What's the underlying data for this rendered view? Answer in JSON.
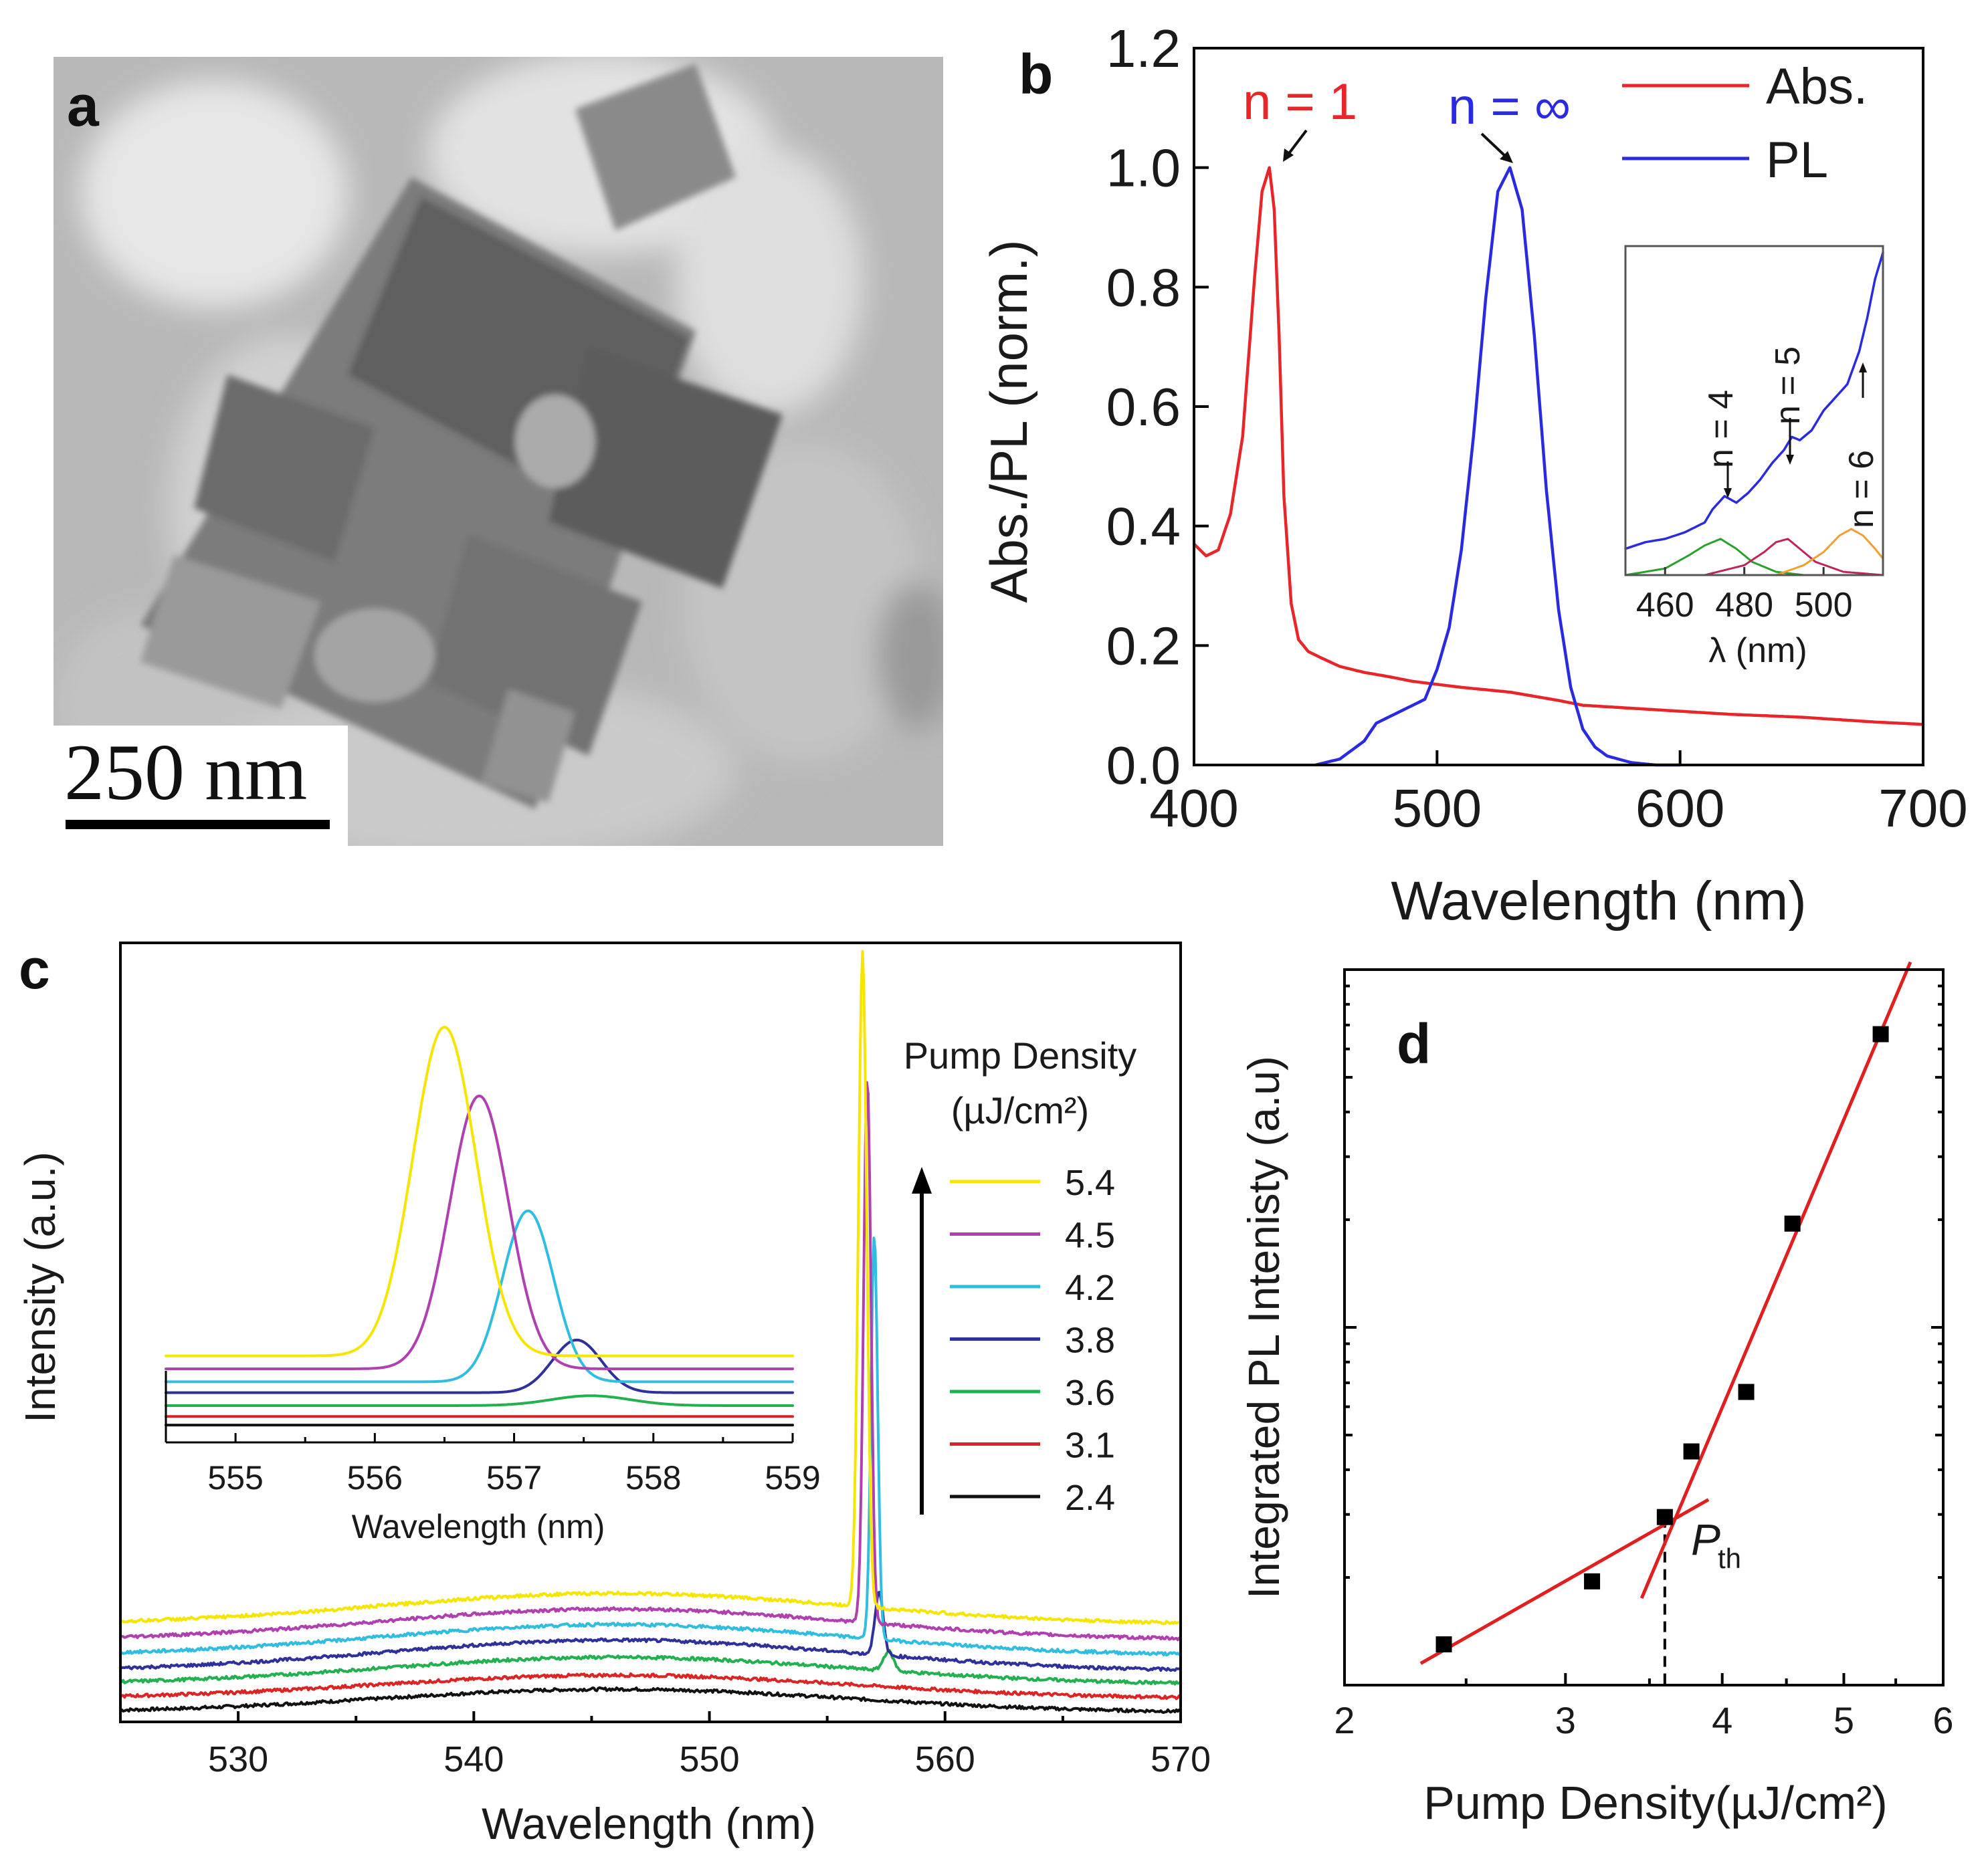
{
  "panels": {
    "a": {
      "label": "a",
      "scale_bar": "250 nm"
    }
  },
  "colors": {
    "abs": "#e8262a",
    "pl": "#2a2ae0",
    "yellow": "#f5e600",
    "purple": "#b040b0",
    "cyan": "#30bde0",
    "navy": "#30309a",
    "green": "#22b050",
    "red": "#dd2424",
    "black": "#111111",
    "fit": "#e02020",
    "inset_green": "#2ca02c",
    "inset_red": "#c0245c",
    "inset_orange": "#f0a030"
  },
  "chart_data": [
    {
      "panel": "b",
      "type": "line",
      "xlabel": "Wavelength (nm)",
      "ylabel": "Abs./PL (norm.)",
      "xlim": [
        400,
        700
      ],
      "ylim": [
        0.0,
        1.2
      ],
      "xticks": [
        400,
        500,
        600,
        700
      ],
      "yticks": [
        0.0,
        0.2,
        0.4,
        0.6,
        0.8,
        1.0,
        1.2
      ],
      "xtick_labels": [
        "400",
        "500",
        "600",
        "700"
      ],
      "ytick_labels": [
        "0.0",
        "0.2",
        "0.4",
        "0.6",
        "0.8",
        "1.0",
        "1.2"
      ],
      "legend": [
        "Abs.",
        "PL"
      ],
      "legend_position": "top-right",
      "annotations": [
        "n = 1",
        "n = ∞"
      ],
      "series": [
        {
          "name": "Abs.",
          "x": [
            400,
            405,
            410,
            415,
            420,
            425,
            428,
            431,
            433,
            435,
            437,
            440,
            443,
            447,
            452,
            460,
            470,
            480,
            490,
            500,
            510,
            520,
            530,
            540,
            550,
            560,
            580,
            600,
            620,
            650,
            680,
            700
          ],
          "y": [
            0.37,
            0.35,
            0.36,
            0.42,
            0.55,
            0.82,
            0.96,
            1.0,
            0.93,
            0.72,
            0.45,
            0.27,
            0.21,
            0.19,
            0.18,
            0.165,
            0.155,
            0.148,
            0.14,
            0.135,
            0.13,
            0.126,
            0.122,
            0.115,
            0.108,
            0.1,
            0.095,
            0.09,
            0.085,
            0.08,
            0.072,
            0.068
          ]
        },
        {
          "name": "PL",
          "x": [
            450,
            460,
            470,
            475,
            480,
            485,
            490,
            495,
            500,
            505,
            510,
            515,
            520,
            525,
            530,
            535,
            540,
            545,
            550,
            555,
            560,
            565,
            570,
            580,
            590,
            600
          ],
          "y": [
            0.0,
            0.01,
            0.04,
            0.07,
            0.08,
            0.09,
            0.1,
            0.11,
            0.16,
            0.23,
            0.36,
            0.55,
            0.78,
            0.96,
            1.0,
            0.93,
            0.72,
            0.46,
            0.26,
            0.13,
            0.06,
            0.03,
            0.015,
            0.004,
            0.0,
            0.0
          ]
        }
      ],
      "inset": {
        "xlabel": "λ (nm)",
        "xticks": [
          460,
          480,
          500
        ],
        "xtick_labels": [
          "460",
          "480",
          "500"
        ],
        "xlim": [
          450,
          515
        ],
        "ylim": [
          0,
          1
        ],
        "annotations": [
          "n = 4",
          "n = 5",
          "n = 6"
        ],
        "series": [
          {
            "name": "PL",
            "x": [
              450,
              455,
              460,
              465,
              470,
              472,
              475,
              478,
              481,
              484,
              487,
              490,
              492,
              494,
              497,
              500,
              503,
              506,
              509,
              511,
              513,
              515
            ],
            "y": [
              0.08,
              0.1,
              0.11,
              0.13,
              0.16,
              0.2,
              0.24,
              0.22,
              0.25,
              0.29,
              0.34,
              0.38,
              0.42,
              0.41,
              0.44,
              0.5,
              0.54,
              0.58,
              0.68,
              0.78,
              0.9,
              0.98
            ]
          },
          {
            "name": "n = 4",
            "x": [
              450,
              460,
              466,
              470,
              474,
              478,
              482,
              488,
              495
            ],
            "y": [
              0.0,
              0.02,
              0.06,
              0.09,
              0.11,
              0.08,
              0.04,
              0.01,
              0.0
            ]
          },
          {
            "name": "n = 5",
            "x": [
              470,
              480,
              485,
              488,
              491,
              494,
              498,
              505,
              515
            ],
            "y": [
              0.0,
              0.03,
              0.07,
              0.1,
              0.11,
              0.08,
              0.04,
              0.01,
              0.0
            ]
          },
          {
            "name": "n = 6",
            "x": [
              488,
              495,
              500,
              504,
              507,
              510,
              513,
              515
            ],
            "y": [
              0.0,
              0.03,
              0.07,
              0.12,
              0.14,
              0.12,
              0.08,
              0.05
            ]
          }
        ]
      }
    },
    {
      "panel": "c",
      "type": "line",
      "xlabel": "Wavelength (nm)",
      "ylabel": "Intensity (a.u.)",
      "xlim": [
        525,
        570
      ],
      "ylim": [
        0,
        1
      ],
      "xticks": [
        530,
        540,
        550,
        560,
        570
      ],
      "xtick_labels": [
        "530",
        "540",
        "550",
        "560",
        "570"
      ],
      "legend_title": "Pump Density",
      "legend_unit": "(µJ/cm²)",
      "legend": [
        "5.4",
        "4.5",
        "4.2",
        "3.8",
        "3.6",
        "3.1",
        "2.4"
      ],
      "series": [
        {
          "name": "5.4",
          "offset": 0.125,
          "broad": 0.04,
          "peak_x": 556.5,
          "peak_h": 0.84,
          "peak_w": 0.25
        },
        {
          "name": "4.5",
          "offset": 0.105,
          "broad": 0.04,
          "peak_x": 556.7,
          "peak_h": 0.7,
          "peak_w": 0.22
        },
        {
          "name": "4.2",
          "offset": 0.085,
          "broad": 0.04,
          "peak_x": 557.0,
          "peak_h": 0.52,
          "peak_w": 0.2
        },
        {
          "name": "3.8",
          "offset": 0.065,
          "broad": 0.04,
          "peak_x": 557.2,
          "peak_h": 0.08,
          "peak_w": 0.25
        },
        {
          "name": "3.6",
          "offset": 0.048,
          "broad": 0.035,
          "peak_x": 557.6,
          "peak_h": 0.025,
          "peak_w": 0.3
        },
        {
          "name": "3.1",
          "offset": 0.03,
          "broad": 0.03,
          "peak_x": 557.6,
          "peak_h": 0.0,
          "peak_w": 0.3
        },
        {
          "name": "2.4",
          "offset": 0.012,
          "broad": 0.03,
          "peak_x": 557.6,
          "peak_h": 0.0,
          "peak_w": 0.3
        }
      ],
      "inset": {
        "xlabel": "Wavelength (nm)",
        "xlim": [
          554.5,
          559
        ],
        "xticks": [
          555,
          556,
          557,
          558,
          559
        ],
        "xtick_labels": [
          "555",
          "556",
          "557",
          "558",
          "559"
        ],
        "series": [
          {
            "name": "5.4",
            "offset": 0.2,
            "peak_x": 556.5,
            "peak_h": 1.0,
            "peak_w": 0.32
          },
          {
            "name": "4.5",
            "offset": 0.17,
            "peak_x": 556.75,
            "peak_h": 0.83,
            "peak_w": 0.3
          },
          {
            "name": "4.2",
            "offset": 0.14,
            "peak_x": 557.1,
            "peak_h": 0.52,
            "peak_w": 0.26
          },
          {
            "name": "3.8",
            "offset": 0.115,
            "peak_x": 557.45,
            "peak_h": 0.16,
            "peak_w": 0.25
          },
          {
            "name": "3.6",
            "offset": 0.085,
            "peak_x": 557.55,
            "peak_h": 0.03,
            "peak_w": 0.4
          },
          {
            "name": "3.1",
            "offset": 0.06,
            "peak_x": 557.6,
            "peak_h": 0.0,
            "peak_w": 0.4
          },
          {
            "name": "2.4",
            "offset": 0.04,
            "peak_x": 557.6,
            "peak_h": 0.0,
            "peak_w": 0.4
          }
        ]
      }
    },
    {
      "panel": "d",
      "type": "scatter",
      "xlabel": "Pump  Density(µJ/cm²)",
      "ylabel": "Integrated PL Intenisty (a.u)",
      "xscale": "log",
      "yscale": "log",
      "xlim": [
        2,
        6
      ],
      "ylim": [
        1,
        100
      ],
      "xticks": [
        2,
        3,
        4,
        5,
        6
      ],
      "xtick_labels": [
        "2",
        "3",
        "4",
        "5",
        "6"
      ],
      "points": {
        "x": [
          2.4,
          3.15,
          3.6,
          3.78,
          4.18,
          4.55,
          5.35
        ],
        "y": [
          1.3,
          1.95,
          2.95,
          4.5,
          6.6,
          19.5,
          66
        ]
      },
      "fit_lines": [
        {
          "name": "below threshold",
          "x": [
            2.3,
            3.9
          ],
          "y": [
            1.15,
            3.3
          ]
        },
        {
          "name": "above threshold",
          "x": [
            3.45,
            5.65
          ],
          "y": [
            1.75,
            105
          ]
        }
      ],
      "threshold_x": 3.6,
      "threshold_label": "P",
      "threshold_sub": "th"
    }
  ],
  "panel_labels": [
    "b",
    "c",
    "d"
  ]
}
